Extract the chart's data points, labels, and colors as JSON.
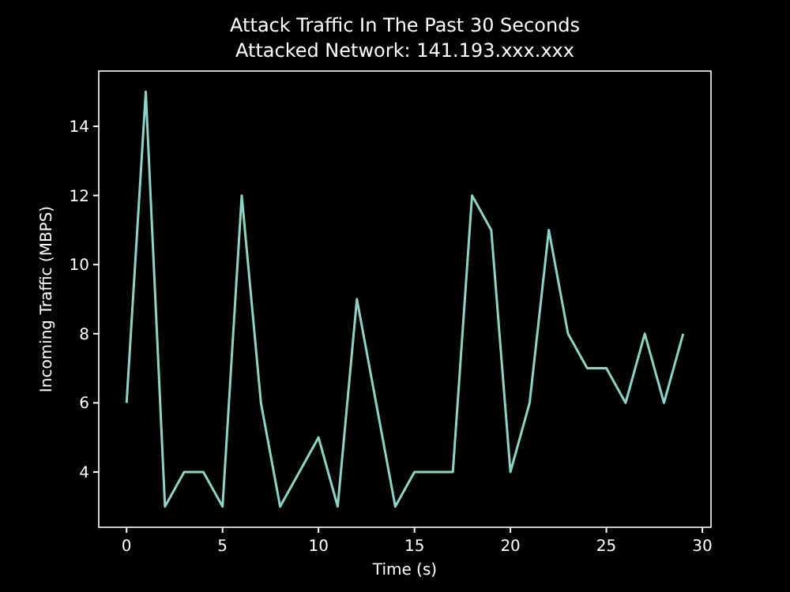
{
  "chart_data": {
    "type": "line",
    "title": "Attack Traffic In The Past 30 Seconds\nAttacked Network: 141.193.xxx.xxx",
    "xlabel": "Time (s)",
    "ylabel": "Incoming Traffic (MBPS)",
    "x": [
      0,
      1,
      2,
      3,
      4,
      5,
      6,
      7,
      8,
      9,
      10,
      11,
      12,
      13,
      14,
      15,
      16,
      17,
      18,
      19,
      20,
      21,
      22,
      23,
      24,
      25,
      26,
      27,
      28,
      29
    ],
    "series": [
      {
        "color": "#8dd3c7",
        "values": [
          6,
          15,
          3,
          4,
          4,
          3,
          12,
          6,
          3,
          4,
          5,
          3,
          9,
          6,
          3,
          4,
          4,
          4,
          12,
          11,
          4,
          6,
          11,
          8,
          7,
          7,
          6,
          8,
          6,
          8
        ]
      }
    ],
    "xlim": [
      -1.45,
      30.45
    ],
    "ylim": [
      2.4,
      15.6
    ],
    "xticks": [
      0,
      5,
      10,
      15,
      20,
      25,
      30
    ],
    "yticks": [
      4,
      6,
      8,
      10,
      12,
      14
    ],
    "grid": false,
    "marker": "none",
    "line_style": "solid"
  }
}
